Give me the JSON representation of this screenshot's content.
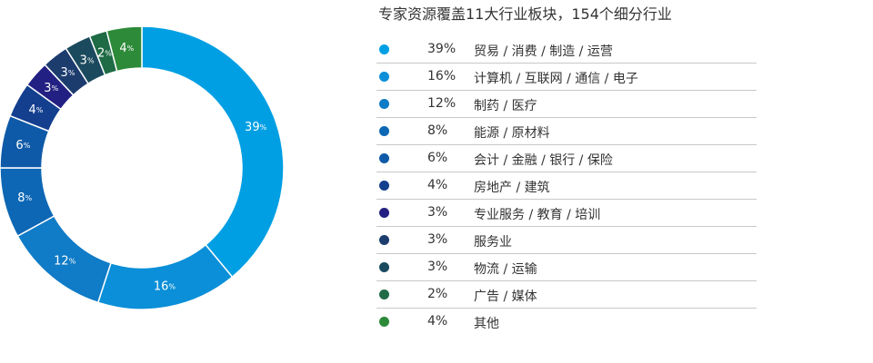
{
  "chart_data": {
    "type": "pie",
    "title": "专家资源覆盖11大行业板块，154个细分行业",
    "donut": true,
    "slices": [
      {
        "value": 39,
        "label": "贸易 / 消费 / 制造 / 运营",
        "color": "#009fe3"
      },
      {
        "value": 16,
        "label": "计算机 / 互联网 / 通信 / 电子",
        "color": "#0a8fd8"
      },
      {
        "value": 12,
        "label": "制药 / 医疗",
        "color": "#107bc6"
      },
      {
        "value": 8,
        "label": "能源 / 原材料",
        "color": "#0d67b5"
      },
      {
        "value": 6,
        "label": "会计 / 金融 / 银行 / 保险",
        "color": "#0f5aa8"
      },
      {
        "value": 4,
        "label": "房地产 / 建筑",
        "color": "#143f8f"
      },
      {
        "value": 3,
        "label": "专业服务 / 教育 / 培训",
        "color": "#222082"
      },
      {
        "value": 3,
        "label": "服务业",
        "color": "#1d3c6e"
      },
      {
        "value": 3,
        "label": "物流 / 运输",
        "color": "#1b4a5e"
      },
      {
        "value": 2,
        "label": "广告 / 媒体",
        "color": "#1e6b46"
      },
      {
        "value": 4,
        "label": "其他",
        "color": "#2d8a39"
      }
    ],
    "legend_position": "right"
  }
}
